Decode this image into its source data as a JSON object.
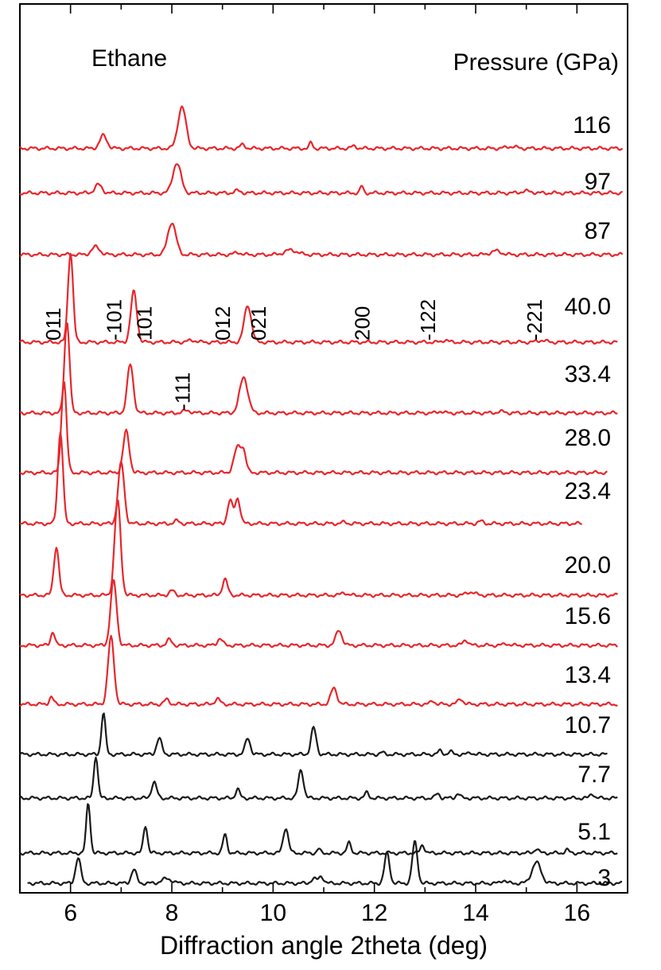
{
  "chart_data": {
    "type": "line",
    "title": "Ethane",
    "legend_title": "Pressure (GPa)",
    "xlabel": "Diffraction angle 2theta (deg)",
    "xlim": [
      5,
      17
    ],
    "xticks": [
      "6",
      "8",
      "10",
      "12",
      "14",
      "16"
    ],
    "colors": {
      "high_pressure": "#e8262b",
      "low_pressure": "#1a1a1a"
    },
    "series": [
      {
        "name": "116",
        "color": "red",
        "baseline": 0.25,
        "start": 5.0,
        "end": 16.9,
        "peaks": [
          [
            6.65,
            0.28,
            0.07
          ],
          [
            8.2,
            0.9,
            0.08
          ],
          [
            9.4,
            0.08,
            0.05
          ],
          [
            10.75,
            0.13,
            0.03
          ],
          [
            11.6,
            0.05,
            0.05
          ],
          [
            14.7,
            0.04,
            0.1
          ]
        ]
      },
      {
        "name": "97",
        "color": "red",
        "baseline": 0.06,
        "start": 5.0,
        "end": 16.9,
        "peaks": [
          [
            6.55,
            0.18,
            0.07
          ],
          [
            8.1,
            0.65,
            0.08
          ],
          [
            9.3,
            0.05,
            0.06
          ],
          [
            11.75,
            0.15,
            0.03
          ],
          [
            15.0,
            0.04,
            0.1
          ]
        ]
      },
      {
        "name": "87",
        "color": "red",
        "baseline": 0.0,
        "start": 5.0,
        "end": 16.9,
        "peaks": [
          [
            6.5,
            0.17,
            0.08
          ],
          [
            8.0,
            0.7,
            0.08
          ],
          [
            9.3,
            0.05,
            0.06
          ],
          [
            10.35,
            0.1,
            0.12
          ],
          [
            14.4,
            0.08,
            0.1
          ]
        ]
      },
      {
        "name": "40.0",
        "color": "red",
        "baseline": 0.0,
        "start": 5.0,
        "end": 16.8,
        "peaks": [
          [
            6.0,
            1.95,
            0.05
          ],
          [
            7.25,
            1.1,
            0.06
          ],
          [
            8.4,
            0.04,
            0.08
          ],
          [
            9.5,
            0.8,
            0.07
          ],
          [
            13.4,
            0.05,
            0.05
          ],
          [
            15.3,
            0.04,
            0.08
          ]
        ]
      },
      {
        "name": "33.4",
        "color": "red",
        "baseline": 0.0,
        "start": 5.0,
        "end": 16.8,
        "peaks": [
          [
            5.93,
            2.0,
            0.05
          ],
          [
            7.18,
            1.05,
            0.06
          ],
          [
            8.3,
            0.05,
            0.08
          ],
          [
            9.42,
            0.78,
            0.08
          ],
          [
            13.3,
            0.04,
            0.05
          ],
          [
            14.5,
            0.03,
            0.08
          ]
        ]
      },
      {
        "name": "28.0",
        "color": "red",
        "baseline": 0.0,
        "start": 5.0,
        "end": 16.6,
        "peaks": [
          [
            5.87,
            2.0,
            0.05
          ],
          [
            7.1,
            0.9,
            0.06
          ],
          [
            9.3,
            0.55,
            0.07
          ],
          [
            9.42,
            0.4,
            0.05
          ]
        ]
      },
      {
        "name": "23.4",
        "color": "red",
        "baseline": 0.0,
        "start": 5.0,
        "end": 16.1,
        "peaks": [
          [
            5.8,
            2.0,
            0.05
          ],
          [
            7.0,
            1.32,
            0.06
          ],
          [
            8.1,
            0.06,
            0.05
          ],
          [
            9.15,
            0.5,
            0.05
          ],
          [
            9.3,
            0.55,
            0.05
          ],
          [
            11.4,
            0.03,
            0.05
          ],
          [
            14.1,
            0.05,
            0.05
          ]
        ]
      },
      {
        "name": "20.0",
        "color": "red",
        "baseline": 0.0,
        "start": 5.0,
        "end": 16.8,
        "peaks": [
          [
            5.72,
            1.05,
            0.05
          ],
          [
            6.93,
            2.05,
            0.06
          ],
          [
            8.0,
            0.1,
            0.05
          ],
          [
            9.05,
            0.35,
            0.05
          ],
          [
            11.4,
            0.06,
            0.05
          ],
          [
            13.9,
            0.07,
            0.08
          ]
        ]
      },
      {
        "name": "15.6",
        "color": "red",
        "baseline": 0.0,
        "start": 5.0,
        "end": 16.8,
        "peaks": [
          [
            5.65,
            0.3,
            0.04
          ],
          [
            6.85,
            1.4,
            0.06
          ],
          [
            7.95,
            0.12,
            0.05
          ],
          [
            8.95,
            0.15,
            0.05
          ],
          [
            11.3,
            0.33,
            0.06
          ],
          [
            13.8,
            0.12,
            0.05
          ],
          [
            14.6,
            0.04,
            0.05
          ]
        ]
      },
      {
        "name": "13.4",
        "color": "red",
        "baseline": 0.0,
        "start": 5.0,
        "end": 16.8,
        "peaks": [
          [
            5.62,
            0.16,
            0.04
          ],
          [
            6.8,
            1.45,
            0.06
          ],
          [
            7.9,
            0.1,
            0.05
          ],
          [
            8.9,
            0.12,
            0.05
          ],
          [
            11.2,
            0.35,
            0.06
          ],
          [
            13.15,
            0.08,
            0.04
          ],
          [
            13.7,
            0.12,
            0.05
          ]
        ]
      },
      {
        "name": "10.7",
        "color": "black",
        "baseline": 0.0,
        "start": 5.0,
        "end": 16.6,
        "peaks": [
          [
            6.65,
            0.9,
            0.04
          ],
          [
            7.75,
            0.35,
            0.05
          ],
          [
            9.5,
            0.35,
            0.05
          ],
          [
            10.8,
            0.58,
            0.05
          ],
          [
            12.15,
            0.04,
            0.04
          ],
          [
            13.3,
            0.08,
            0.04
          ],
          [
            13.5,
            0.06,
            0.04
          ],
          [
            13.9,
            0.04,
            0.04
          ]
        ]
      },
      {
        "name": "7.7",
        "color": "black",
        "baseline": 0.0,
        "start": 5.0,
        "end": 16.8,
        "peaks": [
          [
            6.5,
            0.92,
            0.04
          ],
          [
            7.65,
            0.35,
            0.05
          ],
          [
            9.3,
            0.2,
            0.04
          ],
          [
            10.55,
            0.62,
            0.05
          ],
          [
            11.85,
            0.12,
            0.04
          ],
          [
            13.25,
            0.1,
            0.04
          ],
          [
            13.65,
            0.1,
            0.04
          ],
          [
            16.3,
            0.1,
            0.04
          ]
        ]
      },
      {
        "name": "5.1",
        "color": "black",
        "baseline": 0.0,
        "start": 5.0,
        "end": 16.8,
        "peaks": [
          [
            6.35,
            1.08,
            0.04
          ],
          [
            7.48,
            0.6,
            0.04
          ],
          [
            9.05,
            0.4,
            0.04
          ],
          [
            10.25,
            0.55,
            0.05
          ],
          [
            10.9,
            0.09,
            0.03
          ],
          [
            11.5,
            0.22,
            0.04
          ],
          [
            12.95,
            0.18,
            0.04
          ],
          [
            15.2,
            0.1,
            0.04
          ],
          [
            15.8,
            0.07,
            0.04
          ]
        ]
      },
      {
        "name": "3",
        "color": "black",
        "baseline": 0.0,
        "start": 5.15,
        "end": 16.9,
        "peaks": [
          [
            6.15,
            0.55,
            0.05
          ],
          [
            7.25,
            0.3,
            0.05
          ],
          [
            7.9,
            0.1,
            0.1
          ],
          [
            10.8,
            0.1,
            0.05
          ],
          [
            10.95,
            0.15,
            0.05
          ],
          [
            12.25,
            0.65,
            0.05
          ],
          [
            12.8,
            0.9,
            0.05
          ],
          [
            14.55,
            0.07,
            0.05
          ],
          [
            15.2,
            0.45,
            0.09
          ]
        ]
      }
    ],
    "reflections": [
      {
        "label": "011",
        "x": 5.8,
        "row": 0
      },
      {
        "label": "-101",
        "x": 7.0,
        "row": 0
      },
      {
        "label": "101",
        "x": 7.6,
        "row": 0
      },
      {
        "label": "012",
        "x": 9.15,
        "row": 0
      },
      {
        "label": "021",
        "x": 9.85,
        "row": 0
      },
      {
        "label": "200",
        "x": 11.9,
        "row": 0
      },
      {
        "label": "-122",
        "x": 13.2,
        "row": 0
      },
      {
        "label": "-221",
        "x": 15.3,
        "row": 0
      },
      {
        "label": "-111",
        "x": 8.35,
        "row": 1
      }
    ]
  }
}
